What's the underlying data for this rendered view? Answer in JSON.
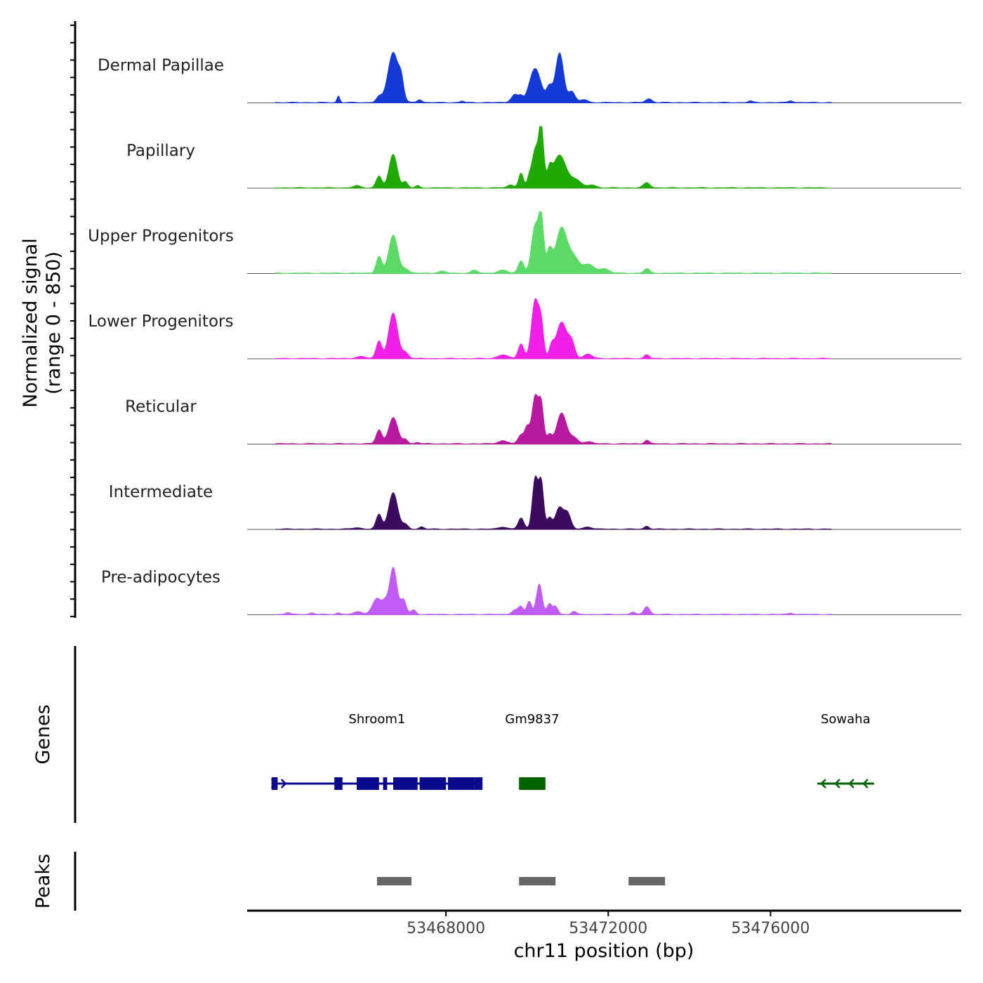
{
  "chart_data": {
    "type": "area",
    "title": "",
    "ylabel": "Normalized signal",
    "ylabel_range": "(range 0 - 850)",
    "xlabel": "chr11 position (bp)",
    "ylim": [
      0,
      850
    ],
    "xlim": [
      53463100,
      53480700
    ],
    "x_ticks": [
      {
        "value": 53468000,
        "label": "53468000"
      },
      {
        "value": 53472000,
        "label": "53472000"
      },
      {
        "value": 53476000,
        "label": "53476000"
      }
    ],
    "signal_x_range": [
      53463800,
      53477500
    ],
    "series": [
      {
        "name": "Dermal Papillae",
        "color": "#1538D8",
        "peaks": [
          [
            53465350,
            90,
            35
          ],
          [
            53466350,
            75,
            70
          ],
          [
            53466700,
            690,
            130
          ],
          [
            53466900,
            220,
            60
          ],
          [
            53467350,
            40,
            60
          ],
          [
            53468400,
            20,
            50
          ],
          [
            53469700,
            110,
            90
          ],
          [
            53469850,
            60,
            50
          ],
          [
            53470200,
            470,
            140
          ],
          [
            53470550,
            200,
            70
          ],
          [
            53470800,
            680,
            100
          ],
          [
            53471100,
            150,
            80
          ],
          [
            53471400,
            40,
            90
          ],
          [
            53473000,
            50,
            80
          ],
          [
            53475500,
            20,
            60
          ],
          [
            53476500,
            25,
            60
          ]
        ]
      },
      {
        "name": "Papillary",
        "color": "#1FAA00",
        "peaks": [
          [
            53465800,
            30,
            80
          ],
          [
            53466350,
            160,
            70
          ],
          [
            53466700,
            460,
            100
          ],
          [
            53467000,
            80,
            60
          ],
          [
            53467300,
            30,
            50
          ],
          [
            53469600,
            40,
            80
          ],
          [
            53469850,
            200,
            60
          ],
          [
            53470050,
            120,
            50
          ],
          [
            53470200,
            520,
            80
          ],
          [
            53470350,
            800,
            60
          ],
          [
            53470550,
            200,
            60
          ],
          [
            53470800,
            450,
            160
          ],
          [
            53471200,
            110,
            130
          ],
          [
            53471600,
            40,
            100
          ],
          [
            53472950,
            70,
            80
          ]
        ]
      },
      {
        "name": "Upper Progenitors",
        "color": "#5BDA66",
        "peaks": [
          [
            53466350,
            230,
            70
          ],
          [
            53466700,
            520,
            110
          ],
          [
            53467000,
            60,
            80
          ],
          [
            53467900,
            25,
            100
          ],
          [
            53468700,
            40,
            80
          ],
          [
            53469400,
            40,
            120
          ],
          [
            53469850,
            170,
            70
          ],
          [
            53470200,
            650,
            90
          ],
          [
            53470350,
            700,
            60
          ],
          [
            53470550,
            300,
            70
          ],
          [
            53470850,
            620,
            140
          ],
          [
            53471150,
            200,
            120
          ],
          [
            53471500,
            120,
            150
          ],
          [
            53471900,
            60,
            120
          ],
          [
            53472950,
            60,
            70
          ]
        ]
      },
      {
        "name": "Lower Progenitors",
        "color": "#F21FE8",
        "peaks": [
          [
            53465900,
            25,
            120
          ],
          [
            53466350,
            240,
            70
          ],
          [
            53466700,
            620,
            110
          ],
          [
            53467000,
            80,
            80
          ],
          [
            53469400,
            50,
            120
          ],
          [
            53469850,
            200,
            70
          ],
          [
            53470200,
            800,
            90
          ],
          [
            53470350,
            400,
            60
          ],
          [
            53470600,
            150,
            60
          ],
          [
            53470850,
            500,
            130
          ],
          [
            53471100,
            200,
            80
          ],
          [
            53471500,
            60,
            100
          ],
          [
            53472950,
            50,
            60
          ]
        ]
      },
      {
        "name": "Reticular",
        "color": "#B918A0",
        "peaks": [
          [
            53466350,
            190,
            70
          ],
          [
            53466700,
            360,
            110
          ],
          [
            53467000,
            60,
            60
          ],
          [
            53467300,
            20,
            60
          ],
          [
            53469400,
            40,
            120
          ],
          [
            53469850,
            120,
            70
          ],
          [
            53470000,
            220,
            60
          ],
          [
            53470200,
            650,
            80
          ],
          [
            53470350,
            500,
            60
          ],
          [
            53470550,
            120,
            60
          ],
          [
            53470850,
            420,
            120
          ],
          [
            53471150,
            80,
            100
          ],
          [
            53471500,
            30,
            100
          ],
          [
            53472950,
            50,
            60
          ]
        ]
      },
      {
        "name": "Intermediate",
        "color": "#3C0B60",
        "peaks": [
          [
            53465800,
            20,
            100
          ],
          [
            53466350,
            200,
            70
          ],
          [
            53466700,
            500,
            110
          ],
          [
            53467000,
            60,
            70
          ],
          [
            53467400,
            30,
            60
          ],
          [
            53469400,
            30,
            100
          ],
          [
            53469850,
            150,
            70
          ],
          [
            53470200,
            700,
            70
          ],
          [
            53470350,
            620,
            60
          ],
          [
            53470550,
            150,
            60
          ],
          [
            53470800,
            300,
            100
          ],
          [
            53471000,
            200,
            80
          ],
          [
            53471500,
            30,
            100
          ],
          [
            53472950,
            40,
            60
          ]
        ]
      },
      {
        "name": "Pre-adipocytes",
        "color": "#C05CF5",
        "peaks": [
          [
            53464100,
            25,
            60
          ],
          [
            53464700,
            20,
            60
          ],
          [
            53465350,
            20,
            60
          ],
          [
            53465850,
            40,
            100
          ],
          [
            53466300,
            220,
            110
          ],
          [
            53466500,
            130,
            70
          ],
          [
            53466700,
            650,
            90
          ],
          [
            53466950,
            200,
            70
          ],
          [
            53467200,
            60,
            60
          ],
          [
            53469700,
            60,
            80
          ],
          [
            53469850,
            100,
            60
          ],
          [
            53470050,
            180,
            60
          ],
          [
            53470300,
            420,
            70
          ],
          [
            53470550,
            140,
            60
          ],
          [
            53470700,
            110,
            60
          ],
          [
            53471150,
            40,
            60
          ],
          [
            53472600,
            30,
            60
          ],
          [
            53472950,
            110,
            70
          ],
          [
            53476500,
            20,
            60
          ]
        ]
      }
    ],
    "genes": [
      {
        "name": "Shroom1",
        "strand": "+",
        "start": 53463700,
        "end": 53468900,
        "color": "#0A0A8C",
        "exons": [
          [
            53463700,
            53463850
          ],
          [
            53465250,
            53465450
          ],
          [
            53465800,
            53466350
          ],
          [
            53466450,
            53466550
          ],
          [
            53466700,
            53467300
          ],
          [
            53467350,
            53468000
          ],
          [
            53468050,
            53468700
          ],
          [
            53468700,
            53468900
          ]
        ]
      },
      {
        "name": "Gm9837",
        "strand": "",
        "start": 53469800,
        "end": 53470450,
        "color": "#006400",
        "exons": [
          [
            53469800,
            53470450
          ]
        ]
      },
      {
        "name": "Sowaha",
        "strand": "-",
        "start": 53477150,
        "end": 53478550,
        "color": "#006400",
        "exons": []
      }
    ],
    "peaks": [
      {
        "start": 53466300,
        "end": 53467150
      },
      {
        "start": 53469800,
        "end": 53470700
      },
      {
        "start": 53472500,
        "end": 53473400
      }
    ],
    "panel_labels": {
      "genes": "Genes",
      "peaks": "Peaks"
    }
  }
}
